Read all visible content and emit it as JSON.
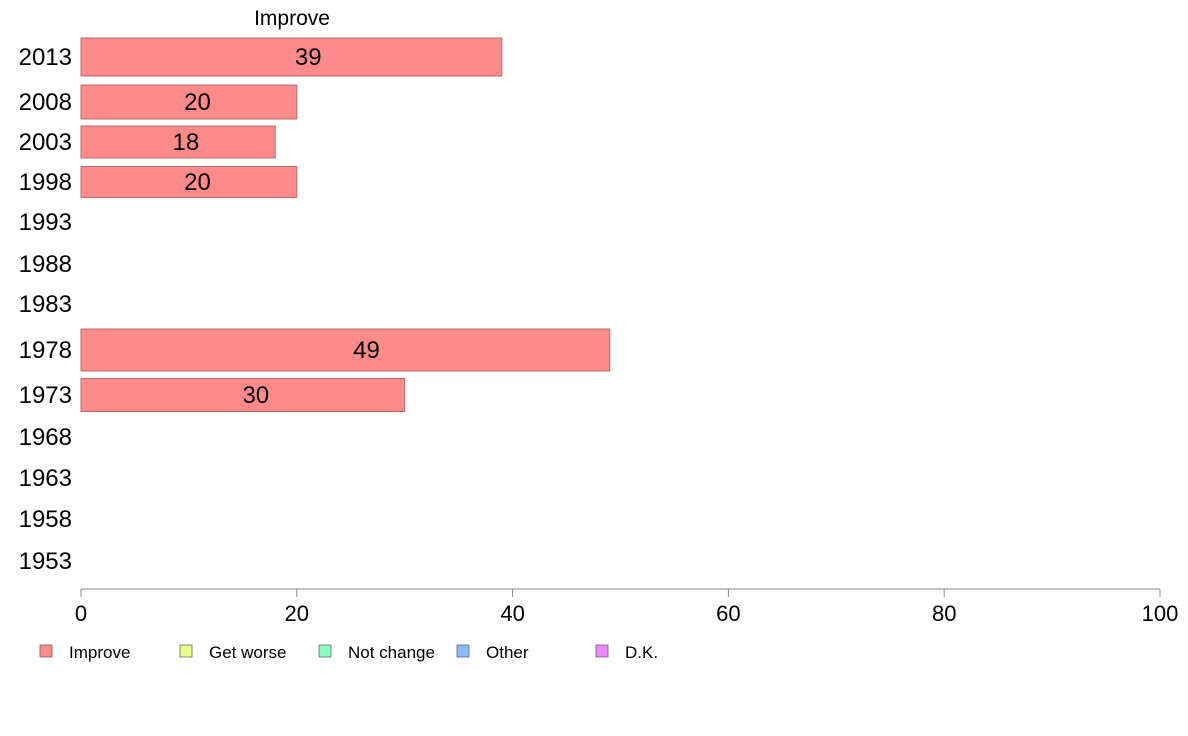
{
  "chart_data": {
    "type": "bar",
    "orientation": "horizontal",
    "title": "Improve",
    "xlabel": "",
    "ylabel": "",
    "xlim": [
      0,
      100
    ],
    "xticks": [
      0,
      20,
      40,
      60,
      80,
      100
    ],
    "categories": [
      "2013",
      "2008",
      "2003",
      "1998",
      "1993",
      "1988",
      "1983",
      "1978",
      "1973",
      "1968",
      "1963",
      "1958",
      "1953"
    ],
    "series": [
      {
        "name": "Improve",
        "color": "#ff8a8a",
        "values": [
          39,
          20,
          18,
          20,
          null,
          null,
          null,
          49,
          30,
          null,
          null,
          null,
          null
        ],
        "labels": [
          "39",
          "20",
          "18",
          "20",
          "",
          "",
          "",
          "49",
          "30",
          "",
          "",
          "",
          ""
        ]
      }
    ],
    "legend": {
      "position": "bottom-left",
      "items": [
        {
          "label": "Improve",
          "color": "#ff8a8a"
        },
        {
          "label": "Get worse",
          "color": "#eeff88"
        },
        {
          "label": "Not change",
          "color": "#88ffbb"
        },
        {
          "label": "Other",
          "color": "#88bbff"
        },
        {
          "label": "D.K.",
          "color": "#ee88ff"
        }
      ]
    },
    "grid": false
  }
}
